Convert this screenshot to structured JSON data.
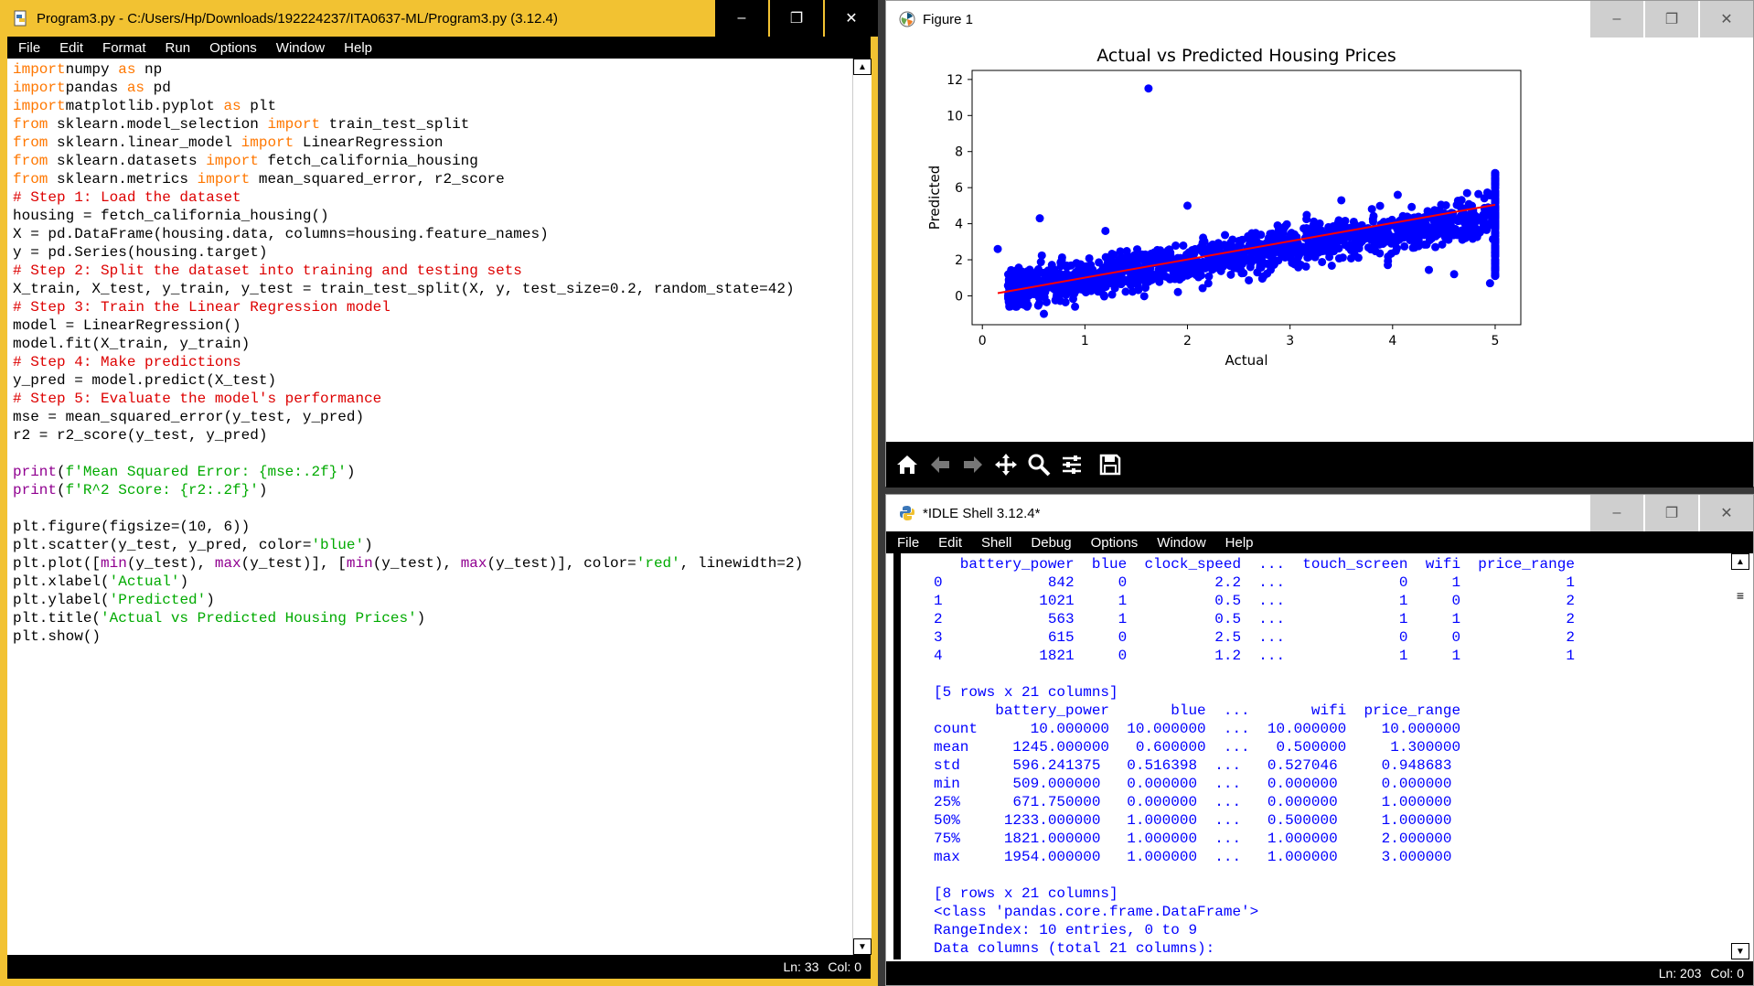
{
  "editor": {
    "title": "Program3.py - C:/Users/Hp/Downloads/192224237/ITA0637-ML/Program3.py (3.12.4)",
    "window_buttons": [
      "–",
      "❐",
      "✕"
    ],
    "menu": [
      "File",
      "Edit",
      "Format",
      "Run",
      "Options",
      "Window",
      "Help"
    ],
    "status": {
      "line": "Ln: 33",
      "col": "Col: 0"
    },
    "code_lines": [
      [
        [
          "kw",
          "import"
        ],
        [
          "",
          "numpy "
        ],
        [
          "kw",
          "as"
        ],
        [
          "",
          " np"
        ]
      ],
      [
        [
          "kw",
          "import"
        ],
        [
          "",
          "pandas "
        ],
        [
          "kw",
          "as"
        ],
        [
          "",
          " pd"
        ]
      ],
      [
        [
          "kw",
          "import"
        ],
        [
          "",
          "matplotlib.pyplot "
        ],
        [
          "kw",
          "as"
        ],
        [
          "",
          " plt"
        ]
      ],
      [
        [
          "kw",
          "from"
        ],
        [
          "",
          " sklearn.model_selection "
        ],
        [
          "kw",
          "import"
        ],
        [
          "",
          " train_test_split"
        ]
      ],
      [
        [
          "kw",
          "from"
        ],
        [
          "",
          " sklearn.linear_model "
        ],
        [
          "kw",
          "import"
        ],
        [
          "",
          " LinearRegression"
        ]
      ],
      [
        [
          "kw",
          "from"
        ],
        [
          "",
          " sklearn.datasets "
        ],
        [
          "kw",
          "import"
        ],
        [
          "",
          " fetch_california_housing"
        ]
      ],
      [
        [
          "kw",
          "from"
        ],
        [
          "",
          " sklearn.metrics "
        ],
        [
          "kw",
          "import"
        ],
        [
          "",
          " mean_squared_error, r2_score"
        ]
      ],
      [
        [
          "cm",
          "# Step 1: Load the dataset"
        ]
      ],
      [
        [
          "",
          "housing = fetch_california_housing()"
        ]
      ],
      [
        [
          "",
          "X = pd.DataFrame(housing.data, columns=housing.feature_names)"
        ]
      ],
      [
        [
          "",
          "y = pd.Series(housing.target)"
        ]
      ],
      [
        [
          "cm",
          "# Step 2: Split the dataset into training and testing sets"
        ]
      ],
      [
        [
          "",
          "X_train, X_test, y_train, y_test = train_test_split(X, y, test_size=0.2, random_state=42)"
        ]
      ],
      [
        [
          "cm",
          "# Step 3: Train the Linear Regression model"
        ]
      ],
      [
        [
          "",
          "model = LinearRegression()"
        ]
      ],
      [
        [
          "",
          "model.fit(X_train, y_train)"
        ]
      ],
      [
        [
          "cm",
          "# Step 4: Make predictions"
        ]
      ],
      [
        [
          "",
          "y_pred = model.predict(X_test)"
        ]
      ],
      [
        [
          "cm",
          "# Step 5: Evaluate the model's performance"
        ]
      ],
      [
        [
          "",
          "mse = mean_squared_error(y_test, y_pred)"
        ]
      ],
      [
        [
          "",
          "r2 = r2_score(y_test, y_pred)"
        ]
      ],
      [
        [
          "",
          ""
        ]
      ],
      [
        [
          "bi",
          "print"
        ],
        [
          "",
          "("
        ],
        [
          "st",
          "f'Mean Squared Error: {mse:.2f}'"
        ],
        [
          "",
          ")"
        ]
      ],
      [
        [
          "bi",
          "print"
        ],
        [
          "",
          "("
        ],
        [
          "st",
          "f'R^2 Score: {r2:.2f}'"
        ],
        [
          "",
          ")"
        ]
      ],
      [
        [
          "",
          ""
        ]
      ],
      [
        [
          "",
          "plt.figure(figsize=(10, 6))"
        ]
      ],
      [
        [
          "",
          "plt.scatter(y_test, y_pred, color="
        ],
        [
          "st",
          "'blue'"
        ],
        [
          "",
          ")"
        ]
      ],
      [
        [
          "",
          "plt.plot(["
        ],
        [
          "bi",
          "min"
        ],
        [
          "",
          "(y_test), "
        ],
        [
          "bi",
          "max"
        ],
        [
          "",
          "(y_test)], ["
        ],
        [
          "bi",
          "min"
        ],
        [
          "",
          "(y_test), "
        ],
        [
          "bi",
          "max"
        ],
        [
          "",
          "(y_test)], color="
        ],
        [
          "st",
          "'red'"
        ],
        [
          "",
          ", linewidth=2)"
        ]
      ],
      [
        [
          "",
          "plt.xlabel("
        ],
        [
          "st",
          "'Actual'"
        ],
        [
          "",
          ")"
        ]
      ],
      [
        [
          "",
          "plt.ylabel("
        ],
        [
          "st",
          "'Predicted'"
        ],
        [
          "",
          ")"
        ]
      ],
      [
        [
          "",
          "plt.title("
        ],
        [
          "st",
          "'Actual vs Predicted Housing Prices'"
        ],
        [
          "",
          ")"
        ]
      ],
      [
        [
          "",
          "plt.show()"
        ]
      ],
      [
        [
          "",
          ""
        ]
      ]
    ]
  },
  "figure": {
    "title": "Figure 1",
    "window_buttons": [
      "–",
      "❐",
      "✕"
    ],
    "tools": [
      "home-icon",
      "back-arrow-icon",
      "forward-arrow-icon",
      "pan-icon",
      "zoom-icon",
      "configure-icon",
      "save-icon"
    ]
  },
  "chart_data": {
    "type": "scatter",
    "title": "Actual vs Predicted Housing Prices",
    "xlabel": "Actual",
    "ylabel": "Predicted",
    "xlim": [
      -0.1,
      5.25
    ],
    "ylim": [
      -1.6,
      12.5
    ],
    "xticks": [
      0,
      1,
      2,
      3,
      4,
      5
    ],
    "yticks": [
      0,
      2,
      4,
      6,
      8,
      10,
      12
    ],
    "scatter_color": "#0000ff",
    "line_color": "#ff0000",
    "line": {
      "x": [
        0.15,
        5.0
      ],
      "y": [
        0.15,
        5.05
      ]
    },
    "outliers": [
      [
        1.62,
        11.5
      ],
      [
        2.0,
        5.0
      ],
      [
        0.56,
        4.3
      ],
      [
        1.2,
        3.6
      ],
      [
        3.5,
        5.3
      ],
      [
        4.05,
        5.6
      ],
      [
        4.6,
        1.2
      ],
      [
        0.15,
        2.6
      ],
      [
        0.6,
        -1.0
      ],
      [
        4.95,
        0.7
      ]
    ],
    "cloud": {
      "n": 1500,
      "x_range": [
        0.25,
        5.0
      ],
      "slope": 0.95,
      "intercept": 0.15,
      "spread": 0.55
    }
  },
  "shell": {
    "title": "*IDLE Shell 3.12.4*",
    "window_buttons": [
      "–",
      "❐",
      "✕"
    ],
    "menu": [
      "File",
      "Edit",
      "Shell",
      "Debug",
      "Options",
      "Window",
      "Help"
    ],
    "status": {
      "line": "Ln: 203",
      "col": "Col: 0"
    },
    "output_lines": [
      "   battery_power  blue  clock_speed  ...  touch_screen  wifi  price_range",
      "0            842     0          2.2  ...             0     1            1",
      "1           1021     1          0.5  ...             1     0            2",
      "2            563     1          0.5  ...             1     1            2",
      "3            615     0          2.5  ...             0     0            2",
      "4           1821     0          1.2  ...             1     1            1",
      "",
      "[5 rows x 21 columns]",
      "       battery_power       blue  ...       wifi  price_range",
      "count      10.000000  10.000000  ...  10.000000    10.000000",
      "mean     1245.000000   0.600000  ...   0.500000     1.300000",
      "std      596.241375   0.516398  ...   0.527046     0.948683",
      "min      509.000000   0.000000  ...   0.000000     0.000000",
      "25%      671.750000   0.000000  ...   0.000000     1.000000",
      "50%     1233.000000   1.000000  ...   0.500000     1.000000",
      "75%     1821.000000   1.000000  ...   1.000000     2.000000",
      "max     1954.000000   1.000000  ...   1.000000     3.000000",
      "",
      "[8 rows x 21 columns]",
      "<class 'pandas.core.frame.DataFrame'>",
      "RangeIndex: 10 entries, 0 to 9",
      "Data columns (total 21 columns):"
    ]
  }
}
